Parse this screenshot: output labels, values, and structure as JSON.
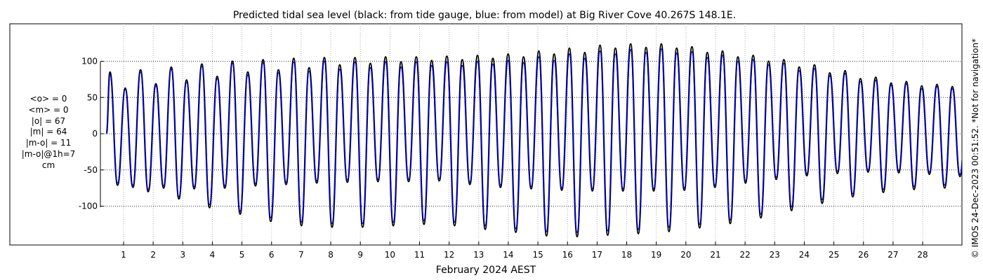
{
  "colors": {
    "observed": "#000000",
    "model": "#0000cc",
    "grid": "#b0b0b0",
    "axes": "#000000"
  },
  "stats_lines": [
    "<o> = 0",
    "<m> = 0",
    "|o| = 67",
    "|m| = 64",
    "|m-o| = 11",
    "|m-o|@1h=7",
    "cm"
  ],
  "side_note": "© IMOS 24-Dec-2023 00:51:52. *Not for navigation*",
  "chart_data": {
    "type": "line",
    "title": "Predicted tidal sea level (black: from tide gauge, blue: from model) at Big River Cove 40.267S 148.1E.",
    "xlabel": "February 2024 AEST",
    "ylabel": "",
    "xlim": [
      -0.3,
      29.0
    ],
    "ylim": [
      -150,
      150
    ],
    "x_ticks": [
      1,
      2,
      3,
      4,
      5,
      6,
      7,
      8,
      9,
      10,
      11,
      12,
      13,
      14,
      15,
      16,
      17,
      18,
      19,
      20,
      21,
      22,
      23,
      24,
      25,
      26,
      27,
      28
    ],
    "y_ticks": [
      100,
      50,
      0,
      -50,
      -100
    ],
    "y_tick_labels": [
      "100",
      "50",
      "0",
      "-50",
      "-100"
    ],
    "grid": true,
    "data_start_day": 0.5,
    "tidal_cycle_days": 0.5175,
    "series": [
      {
        "name": "from tide gauge",
        "color": "#000000",
        "peaks": [
          85,
          63,
          88,
          69,
          92,
          74,
          96,
          79,
          100,
          85,
          102,
          88,
          104,
          91,
          105,
          95,
          105,
          97,
          106,
          99,
          106,
          101,
          107,
          102,
          108,
          104,
          110,
          106,
          114,
          110,
          118,
          112,
          122,
          118,
          124,
          119,
          124,
          118,
          120,
          112,
          114,
          106,
          108,
          100,
          102,
          92,
          95,
          84,
          87,
          76,
          78,
          70,
          72,
          66,
          68,
          65,
          66,
          66,
          66,
          66,
          66,
          68,
          68,
          71,
          71,
          74,
          74
        ],
        "troughs": [
          -71,
          -74,
          -80,
          -75,
          -90,
          -76,
          -102,
          -75,
          -111,
          -72,
          -121,
          -70,
          -127,
          -68,
          -129,
          -67,
          -129,
          -66,
          -127,
          -66,
          -125,
          -65,
          -127,
          -70,
          -132,
          -74,
          -136,
          -76,
          -141,
          -78,
          -142,
          -79,
          -140,
          -79,
          -138,
          -79,
          -135,
          -78,
          -130,
          -74,
          -124,
          -68,
          -116,
          -63,
          -106,
          -58,
          -96,
          -55,
          -87,
          -53,
          -81,
          -54,
          -77,
          -56,
          -75,
          -59,
          -73,
          -62,
          -72,
          -64,
          -71,
          -66,
          -70,
          -68,
          -70,
          -68,
          -70
        ]
      },
      {
        "name": "from model",
        "color": "#0000cc",
        "peaks": [
          82,
          61,
          85,
          66,
          89,
          71,
          93,
          76,
          97,
          81,
          98,
          84,
          99,
          86,
          100,
          89,
          99,
          91,
          99,
          92,
          99,
          94,
          99,
          94,
          100,
          96,
          101,
          98,
          106,
          101,
          110,
          104,
          114,
          110,
          116,
          112,
          117,
          111,
          113,
          105,
          108,
          100,
          102,
          95,
          97,
          87,
          90,
          80,
          83,
          72,
          74,
          67,
          69,
          62,
          65,
          62,
          63,
          63,
          63,
          63,
          63,
          65,
          65,
          68,
          68,
          71,
          71
        ],
        "troughs": [
          -68,
          -71,
          -77,
          -72,
          -87,
          -73,
          -98,
          -72,
          -107,
          -69,
          -116,
          -67,
          -122,
          -65,
          -124,
          -64,
          -124,
          -63,
          -122,
          -63,
          -120,
          -62,
          -122,
          -67,
          -127,
          -71,
          -131,
          -73,
          -135,
          -75,
          -136,
          -76,
          -134,
          -76,
          -132,
          -76,
          -129,
          -75,
          -125,
          -71,
          -119,
          -65,
          -111,
          -60,
          -101,
          -55,
          -91,
          -52,
          -83,
          -50,
          -77,
          -51,
          -73,
          -53,
          -71,
          -56,
          -69,
          -59,
          -68,
          -61,
          -67,
          -63,
          -66,
          -65,
          -66,
          -65,
          -66
        ]
      }
    ]
  }
}
